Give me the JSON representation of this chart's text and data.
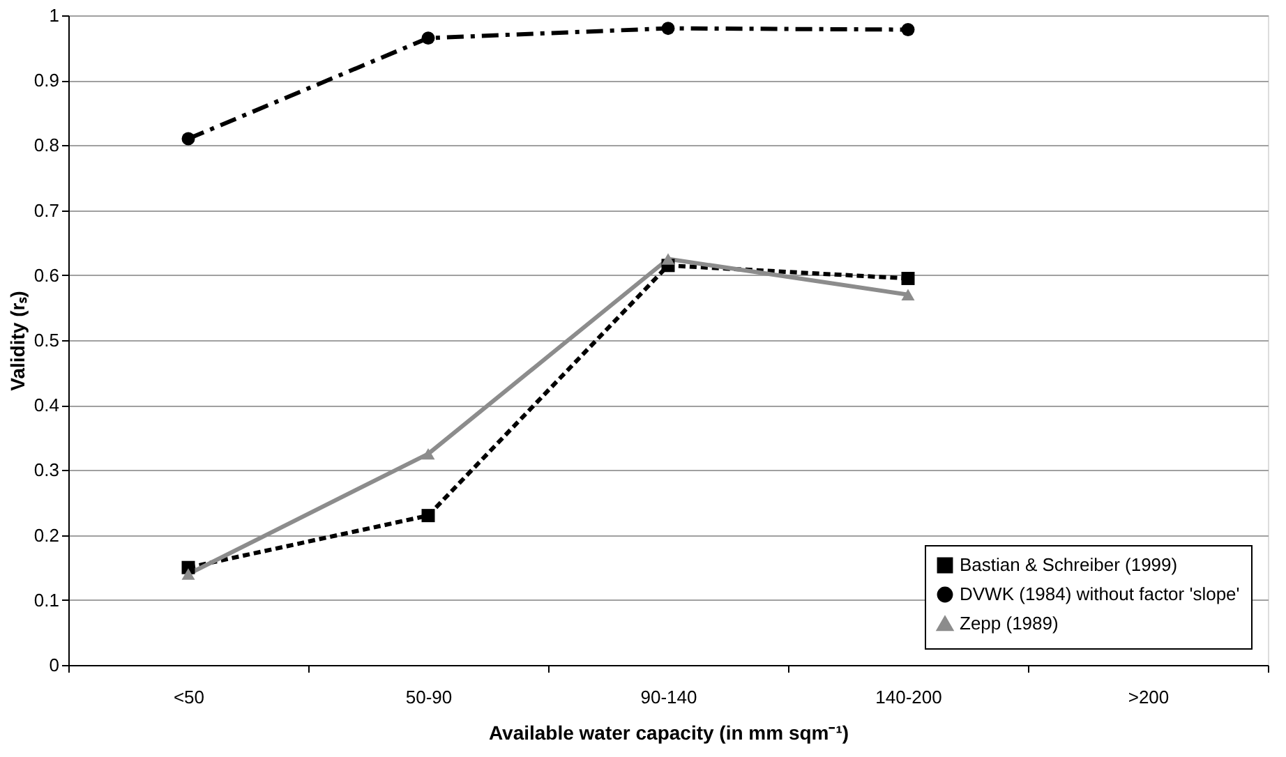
{
  "chart_data": {
    "type": "line",
    "xlabel": "Available water capacity (in mm sqm⁻¹)",
    "ylabel": "Validity (rₛ)",
    "categories": [
      "<50",
      "50-90",
      "90-140",
      "140-200",
      ">200"
    ],
    "series": [
      {
        "name": "Bastian & Schreiber (1999)",
        "color": "#000000",
        "line_style": "dotted",
        "marker": "square",
        "values": [
          0.15,
          0.23,
          0.615,
          0.595,
          null
        ]
      },
      {
        "name": "DVWK (1984) without factor 'slope'",
        "color": "#000000",
        "line_style": "dashed",
        "marker": "circle",
        "values": [
          0.81,
          0.965,
          0.98,
          0.978,
          null
        ]
      },
      {
        "name": "Zepp (1989)",
        "color": "#8c8c8c",
        "line_style": "solid",
        "marker": "triangle",
        "values": [
          0.14,
          0.325,
          0.625,
          0.57,
          null
        ]
      }
    ],
    "ylim": [
      0,
      1
    ],
    "yticks": [
      0,
      0.1,
      0.2,
      0.3,
      0.4,
      0.5,
      0.6,
      0.7,
      0.8,
      0.9,
      1
    ],
    "grid": "y",
    "legend": "bottom right"
  }
}
